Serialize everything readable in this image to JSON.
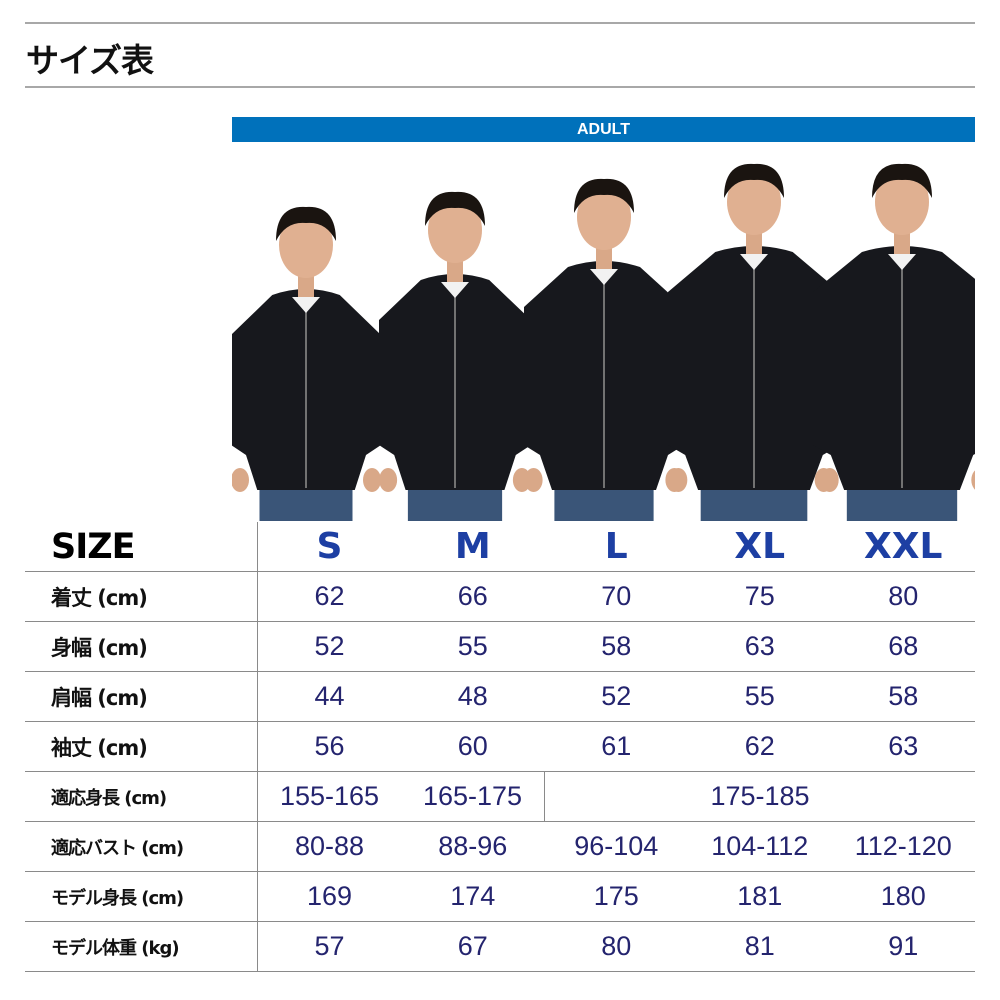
{
  "title": "サイズ表",
  "band_label": "ADULT",
  "colors": {
    "band": "#0071bb",
    "size_header": "#1d3fa3",
    "values": "#24246e"
  },
  "models_image": "five male models wearing black zip hoodies and jeans, sizes S to XXL",
  "table": {
    "header": {
      "label": "SIZE",
      "sizes": [
        "S",
        "M",
        "L",
        "XL",
        "XXL"
      ]
    },
    "rows": [
      {
        "label": "着丈 (cm)",
        "values": [
          "62",
          "66",
          "70",
          "75",
          "80"
        ]
      },
      {
        "label": "身幅 (cm)",
        "values": [
          "52",
          "55",
          "58",
          "63",
          "68"
        ]
      },
      {
        "label": "肩幅 (cm)",
        "values": [
          "44",
          "48",
          "52",
          "55",
          "58"
        ]
      },
      {
        "label": "袖丈 (cm)",
        "values": [
          "56",
          "60",
          "61",
          "62",
          "63"
        ]
      },
      {
        "label": "適応身長 (cm)",
        "values": [
          "155-165",
          "165-175",
          "175-185"
        ]
      },
      {
        "label": "適応バスト (cm)",
        "values": [
          "80-88",
          "88-96",
          "96-104",
          "104-112",
          "112-120"
        ]
      },
      {
        "label": "モデル身長 (cm)",
        "values": [
          "169",
          "174",
          "175",
          "181",
          "180"
        ]
      },
      {
        "label": "モデル体重 (kg)",
        "values": [
          "57",
          "67",
          "80",
          "81",
          "91"
        ]
      }
    ]
  }
}
